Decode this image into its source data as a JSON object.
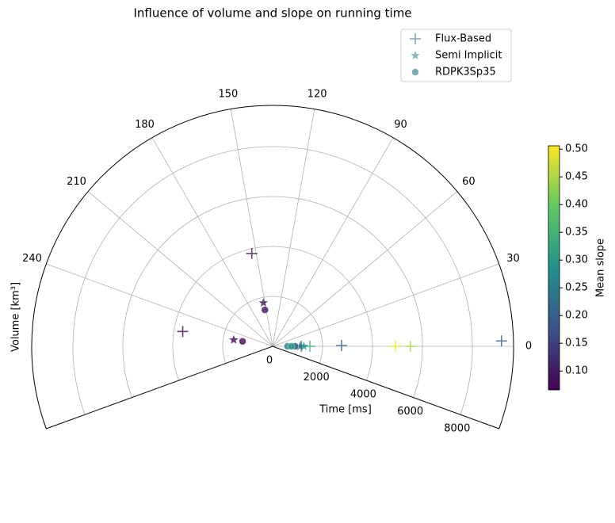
{
  "chart_data": {
    "type": "polar_scatter",
    "title": "Influence of volume and slope on running time",
    "theta_label": "Volume [km³]",
    "r_label": "Time [ms]",
    "colorbar_label": "Mean slope",
    "colormap": "viridis",
    "thetalim": [
      -30,
      300
    ],
    "thetaticks": [
      0,
      30,
      60,
      90,
      120,
      150,
      180,
      210,
      240
    ],
    "rlim": [
      0,
      9650
    ],
    "rticks": [
      0,
      2000,
      4000,
      6000,
      8000
    ],
    "clim": [
      0.066,
      0.506
    ],
    "cticks": [
      {
        "value": 0.1,
        "label": "0.10"
      },
      {
        "value": 0.15,
        "label": "0.15"
      },
      {
        "value": 0.2,
        "label": "0.20"
      },
      {
        "value": 0.25,
        "label": "0.25"
      },
      {
        "value": 0.3,
        "label": "0.30"
      },
      {
        "value": 0.35,
        "label": "0.35"
      },
      {
        "value": 0.4,
        "label": "0.40"
      },
      {
        "value": 0.45,
        "label": "0.45"
      },
      {
        "value": 0.5,
        "label": "0.50"
      }
    ],
    "grid": true,
    "legend": "upper right",
    "series": [
      {
        "name": "Flux-Based",
        "marker": "plus",
        "color": "#5b95a9",
        "r": [
          3810,
          3650,
          2760,
          4920,
          5520,
          9170,
          1490,
          1150
        ],
        "theta": [
          154,
          256,
          1,
          0,
          0,
          2,
          0,
          0
        ],
        "slope": [
          0.09,
          0.07,
          0.2,
          0.5,
          0.45,
          0.2,
          0.35,
          0.25
        ]
      },
      {
        "name": "Semi Implicit",
        "marker": "star",
        "color": "#6aa5b0",
        "r": [
          1780,
          1580,
          1100,
          1250,
          900,
          800
        ],
        "theta": [
          153,
          256,
          0,
          0,
          0,
          0
        ],
        "slope": [
          0.09,
          0.07,
          0.2,
          0.3,
          0.25,
          0.35
        ]
      },
      {
        "name": "RDPK3Sp35",
        "marker": "circle",
        "color": "#5b9aa9",
        "r": [
          1490,
          1220,
          900,
          600,
          750
        ],
        "theta": [
          153,
          256,
          0,
          0,
          0
        ],
        "slope": [
          0.09,
          0.07,
          0.2,
          0.25,
          0.3
        ]
      }
    ]
  }
}
